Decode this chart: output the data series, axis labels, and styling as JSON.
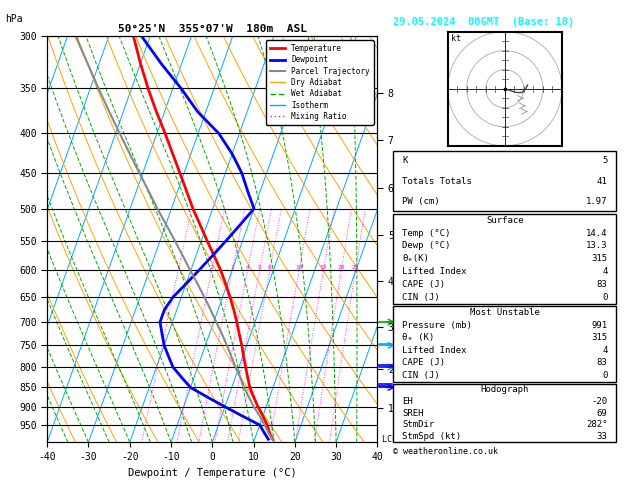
{
  "title_left": "50°25'N  355°07'W  180m  ASL",
  "title_right": "29.05.2024  00GMT  (Base: 18)",
  "xlabel": "Dewpoint / Temperature (°C)",
  "ylabel_left": "hPa",
  "x_min": -40,
  "x_max": 40,
  "p_min": 300,
  "p_max": 1000,
  "pressure_levels": [
    300,
    350,
    400,
    450,
    500,
    550,
    600,
    650,
    700,
    750,
    800,
    850,
    900,
    950
  ],
  "temp_profile": {
    "pressure": [
      991,
      975,
      950,
      925,
      900,
      875,
      850,
      825,
      800,
      775,
      750,
      725,
      700,
      675,
      650,
      625,
      600,
      575,
      550,
      525,
      500,
      475,
      450,
      425,
      400,
      375,
      350,
      325,
      300
    ],
    "temp": [
      14.4,
      13.2,
      11.8,
      10.0,
      8.0,
      6.2,
      4.4,
      3.0,
      1.6,
      0.2,
      -1.2,
      -2.8,
      -4.4,
      -6.2,
      -8.2,
      -10.4,
      -12.8,
      -15.6,
      -18.6,
      -21.6,
      -24.8,
      -27.8,
      -31.0,
      -34.4,
      -38.0,
      -42.0,
      -46.0,
      -50.0,
      -54.0
    ]
  },
  "dewp_profile": {
    "pressure": [
      991,
      975,
      950,
      925,
      900,
      875,
      850,
      825,
      800,
      775,
      750,
      725,
      700,
      675,
      650,
      625,
      600,
      575,
      550,
      525,
      500,
      475,
      450,
      425,
      400,
      375,
      350,
      325,
      300
    ],
    "dewp": [
      13.3,
      12.0,
      10.0,
      5.0,
      0.0,
      -5.0,
      -10.0,
      -13.0,
      -16.0,
      -18.0,
      -20.0,
      -21.5,
      -23.0,
      -23.0,
      -22.0,
      -20.0,
      -18.0,
      -16.0,
      -14.0,
      -12.0,
      -10.0,
      -13.0,
      -16.0,
      -20.0,
      -25.0,
      -32.0,
      -38.0,
      -45.0,
      -52.0
    ]
  },
  "parcel_profile": {
    "pressure": [
      991,
      975,
      950,
      925,
      900,
      875,
      850,
      825,
      800,
      775,
      750,
      725,
      700,
      675,
      650,
      625,
      600,
      575,
      550,
      525,
      500,
      475,
      450,
      425,
      400,
      375,
      350,
      325,
      300
    ],
    "temp": [
      14.4,
      13.0,
      11.2,
      9.2,
      7.0,
      5.0,
      3.0,
      1.2,
      -0.8,
      -2.8,
      -4.8,
      -7.0,
      -9.4,
      -11.8,
      -14.4,
      -17.2,
      -20.2,
      -23.2,
      -26.4,
      -29.8,
      -33.4,
      -37.0,
      -40.8,
      -44.8,
      -49.0,
      -53.4,
      -58.0,
      -62.8,
      -68.0
    ]
  },
  "km_ticks": [
    1,
    2,
    3,
    4,
    5,
    6,
    7,
    8
  ],
  "km_pressures": [
    904,
    805,
    710,
    620,
    540,
    470,
    408,
    355
  ],
  "mixing_ratio_values": [
    1,
    2,
    3,
    4,
    5,
    6,
    10,
    15,
    20,
    25
  ],
  "colors": {
    "temperature": "#FF0000",
    "dewpoint": "#0000FF",
    "parcel": "#888888",
    "dry_adiabat": "#FFA500",
    "wet_adiabat": "#00AA00",
    "isotherm": "#00AAFF",
    "mixing_ratio": "#FF00FF",
    "background": "#FFFFFF",
    "grid": "#000000"
  },
  "stats": {
    "K": 5,
    "Totals_Totals": 41,
    "PW_cm": 1.97,
    "surface_temp": 14.4,
    "surface_dewp": 13.3,
    "surface_theta_e": 315,
    "surface_lifted_index": 4,
    "surface_CAPE": 83,
    "surface_CIN": 0,
    "MU_pressure": 991,
    "MU_theta_e": 315,
    "MU_lifted_index": 4,
    "MU_CAPE": 83,
    "MU_CIN": 0,
    "EH": -20,
    "SREH": 69,
    "StmDir": 282,
    "StmSpd": 33
  },
  "wind_barbs_right": {
    "pressures": [
      850,
      800,
      750,
      700
    ],
    "colors": [
      "#0000FF",
      "#00AAFF",
      "#00AAFF",
      "#00AA00"
    ]
  },
  "font": "monospace"
}
